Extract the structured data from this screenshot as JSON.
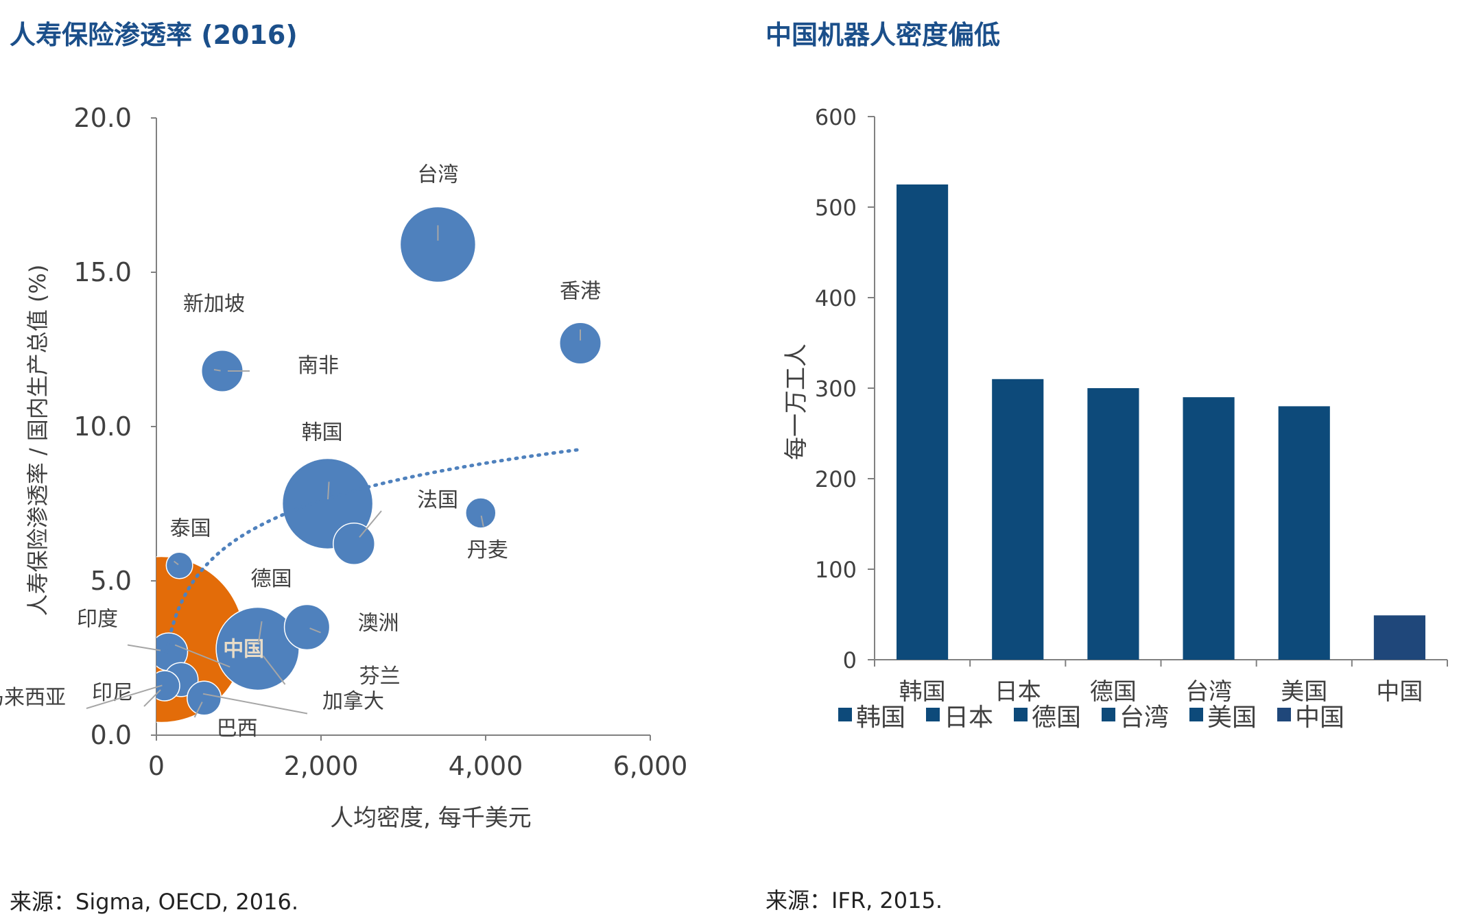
{
  "left_panel": {
    "title": "人寿保险渗透率 (2016)",
    "source": "来源：Sigma, OECD, 2016."
  },
  "right_panel": {
    "title": "中国机器人密度偏低",
    "source": "来源：IFR, 2015."
  },
  "colors": {
    "bubble": "#4f81bd",
    "bubble_highlight": "#e36c09",
    "bar": "#0d4a7a",
    "bar_highlight": "#1f477a",
    "axis": "#808080",
    "label_line": "#a6a6a6",
    "trend": "#4f81bd"
  },
  "chart_data": [
    {
      "type": "scatter",
      "subtype": "bubble",
      "title": "人寿保险渗透率 (2016)",
      "xlabel": "人均密度, 每千美元",
      "ylabel": "人寿保险渗透率 / 国内生产总值 (%)",
      "xlim": [
        0,
        6000
      ],
      "ylim": [
        0,
        20
      ],
      "x_ticks": [
        "0",
        "2,000",
        "4,000",
        "6,000"
      ],
      "y_ticks": [
        "0.0",
        "5.0",
        "10.0",
        "15.0",
        "20.0"
      ],
      "grid": false,
      "legend": "none",
      "points": [
        {
          "label": "台湾",
          "x": 3420,
          "y": 15.9,
          "size": 1.0
        },
        {
          "label": "香港",
          "x": 5150,
          "y": 12.7,
          "size": 0.55
        },
        {
          "label": "南非",
          "x": 800,
          "y": 11.8,
          "size": 0.55
        },
        {
          "label": "新加坡",
          "x": 800,
          "y": 11.8,
          "size": 0
        },
        {
          "label": "韩国",
          "x": 2080,
          "y": 7.5,
          "size": 1.2
        },
        {
          "label": "法国",
          "x": 2400,
          "y": 6.2,
          "size": 0.55
        },
        {
          "label": "丹麦",
          "x": 3940,
          "y": 7.2,
          "size": 0.4
        },
        {
          "label": "泰国",
          "x": 280,
          "y": 5.5,
          "size": 0.35
        },
        {
          "label": "中国",
          "x": 60,
          "y": 3.1,
          "size": 2.2,
          "highlight": true
        },
        {
          "label": "德国",
          "x": 1230,
          "y": 2.8,
          "size": 1.1
        },
        {
          "label": "澳洲",
          "x": 1830,
          "y": 3.5,
          "size": 0.6
        },
        {
          "label": "印度",
          "x": 150,
          "y": 2.7,
          "size": 0.5
        },
        {
          "label": "印尼",
          "x": 100,
          "y": 1.6,
          "size": 0.4
        },
        {
          "label": "马来西亚",
          "x": 300,
          "y": 1.8,
          "size": 0.45
        },
        {
          "label": "巴西",
          "x": 580,
          "y": 1.2,
          "size": 0.45
        },
        {
          "label": "芬兰",
          "x": 1230,
          "y": 2.8,
          "size": 0
        },
        {
          "label": "加拿大",
          "x": 250,
          "y": 1.5,
          "size": 0
        }
      ],
      "trendline": {
        "style": "dotted",
        "type": "log"
      }
    },
    {
      "type": "bar",
      "title": "中国机器人密度偏低",
      "ylabel": "每一万工人",
      "categories": [
        "韩国",
        "日本",
        "德国",
        "台湾",
        "美国",
        "中国"
      ],
      "values": [
        525,
        310,
        300,
        290,
        280,
        49
      ],
      "ylim": [
        0,
        600
      ],
      "y_ticks": [
        "0",
        "100",
        "200",
        "300",
        "400",
        "500",
        "600"
      ],
      "grid": false,
      "legend": "bottom"
    }
  ]
}
